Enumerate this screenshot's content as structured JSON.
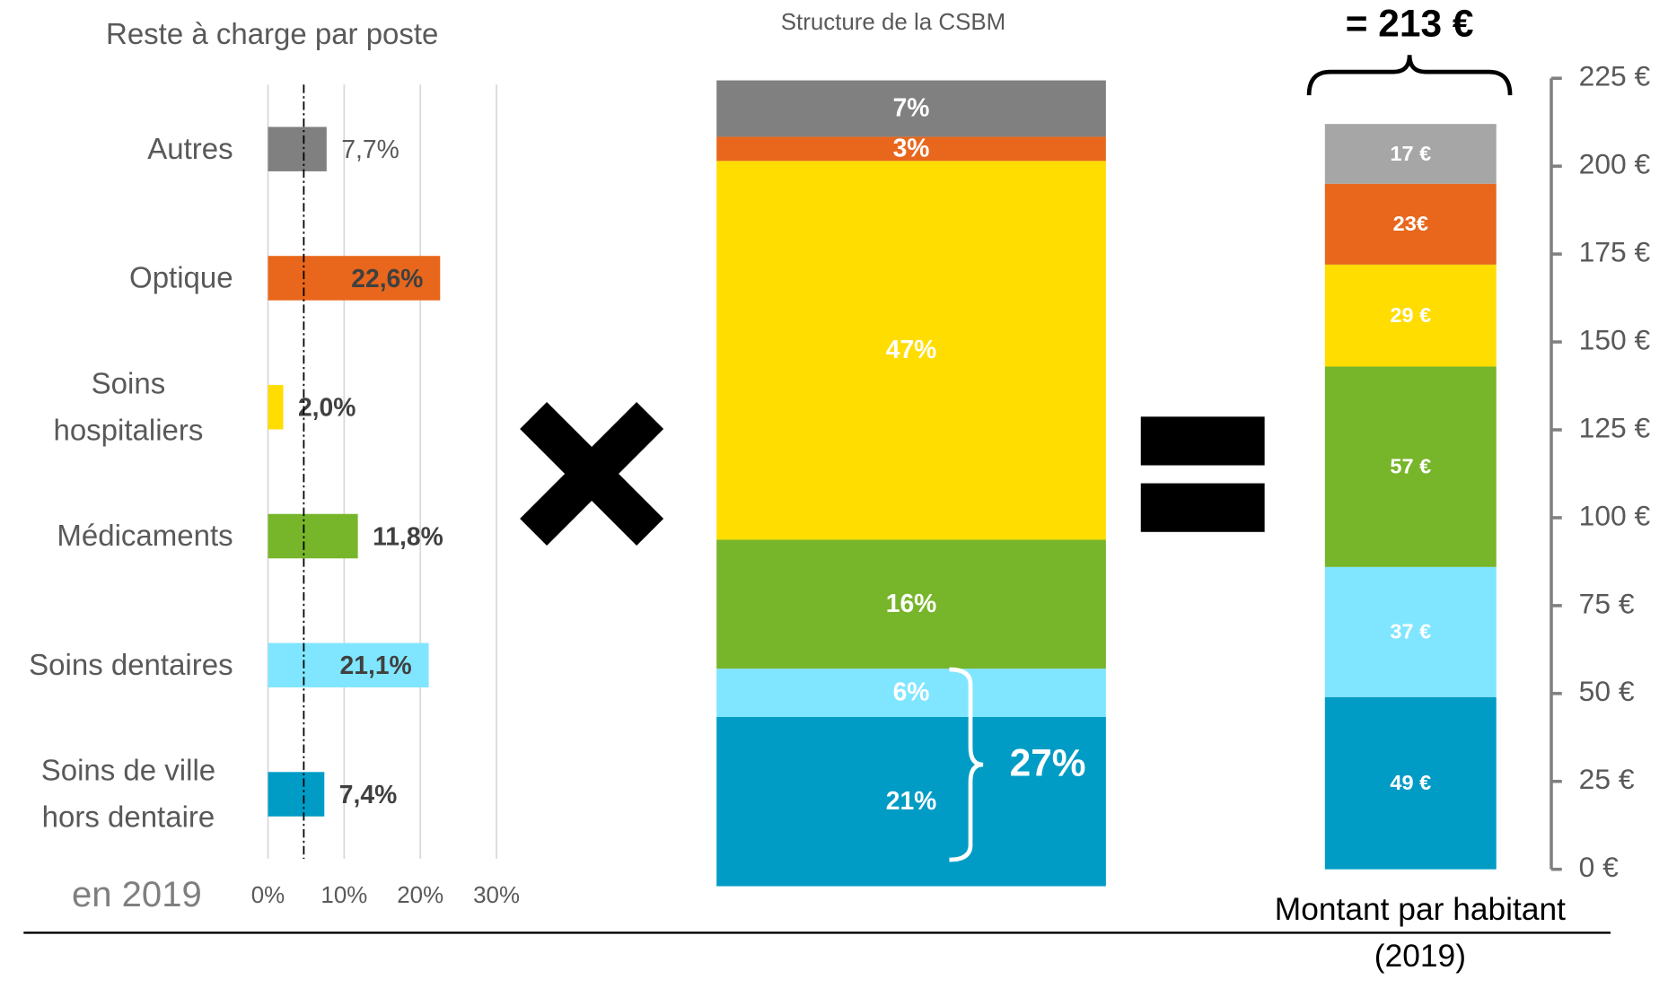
{
  "chart_data": [
    {
      "type": "hbar",
      "title": "Reste à charge par poste",
      "categories": [
        "Autres",
        "Optique",
        "Soins hospitaliers",
        "Médicaments",
        "Soins dentaires",
        "Soins de ville hors dentaire"
      ],
      "values": [
        7.7,
        22.6,
        2.0,
        11.8,
        21.1,
        7.4
      ],
      "value_labels": [
        "7,7%",
        "22,6%",
        "2,0%",
        "11,8%",
        "21,1%",
        "7,4%"
      ],
      "colors": [
        "#808080",
        "#e8671c",
        "#ffdd00",
        "#77b52a",
        "#80e6ff",
        "#009cc5"
      ],
      "xlim": [
        0,
        30
      ],
      "xticks": [
        {
          "value": 0,
          "label": "0%"
        },
        {
          "value": 10,
          "label": "10%"
        },
        {
          "value": 20,
          "label": "20%"
        },
        {
          "value": 30,
          "label": "30%"
        }
      ],
      "grid": true,
      "reference_line": 4.7,
      "annotation": "en 2019"
    },
    {
      "type": "stacked_bar",
      "title": "Structure de la CSBM",
      "values": [
        21,
        6,
        16,
        47,
        3,
        7
      ],
      "value_labels": [
        "21%",
        "6%",
        "16%",
        "47%",
        "3%",
        "7%"
      ],
      "colors": [
        "#009cc5",
        "#80e6ff",
        "#77b52a",
        "#ffdd00",
        "#e8671c",
        "#808080"
      ],
      "ylim": [
        0,
        100
      ],
      "annotation": "27%"
    },
    {
      "type": "stacked_bar",
      "total_label": "= 213 €",
      "values": [
        49,
        37,
        57,
        29,
        23,
        17
      ],
      "value_labels": [
        "49 €",
        "37 €",
        "57 €",
        "29 €",
        "23€",
        "17 €"
      ],
      "colors": [
        "#009cc5",
        "#80e6ff",
        "#77b52a",
        "#ffdd00",
        "#e8671c",
        "#a6a6a6"
      ],
      "ylim": [
        0,
        225
      ],
      "yticks": [
        {
          "value": 0,
          "label": "0 €"
        },
        {
          "value": 25,
          "label": "25 €"
        },
        {
          "value": 50,
          "label": "50 €"
        },
        {
          "value": 75,
          "label": "75 €"
        },
        {
          "value": 100,
          "label": "100 €"
        },
        {
          "value": 125,
          "label": "125 €"
        },
        {
          "value": 150,
          "label": "150 €"
        },
        {
          "value": 175,
          "label": "175 €"
        },
        {
          "value": 200,
          "label": "200 €"
        },
        {
          "value": 225,
          "label": "225 €"
        }
      ],
      "xlabel": "Montant par habitant",
      "xlabel_note": "(2019)"
    }
  ]
}
